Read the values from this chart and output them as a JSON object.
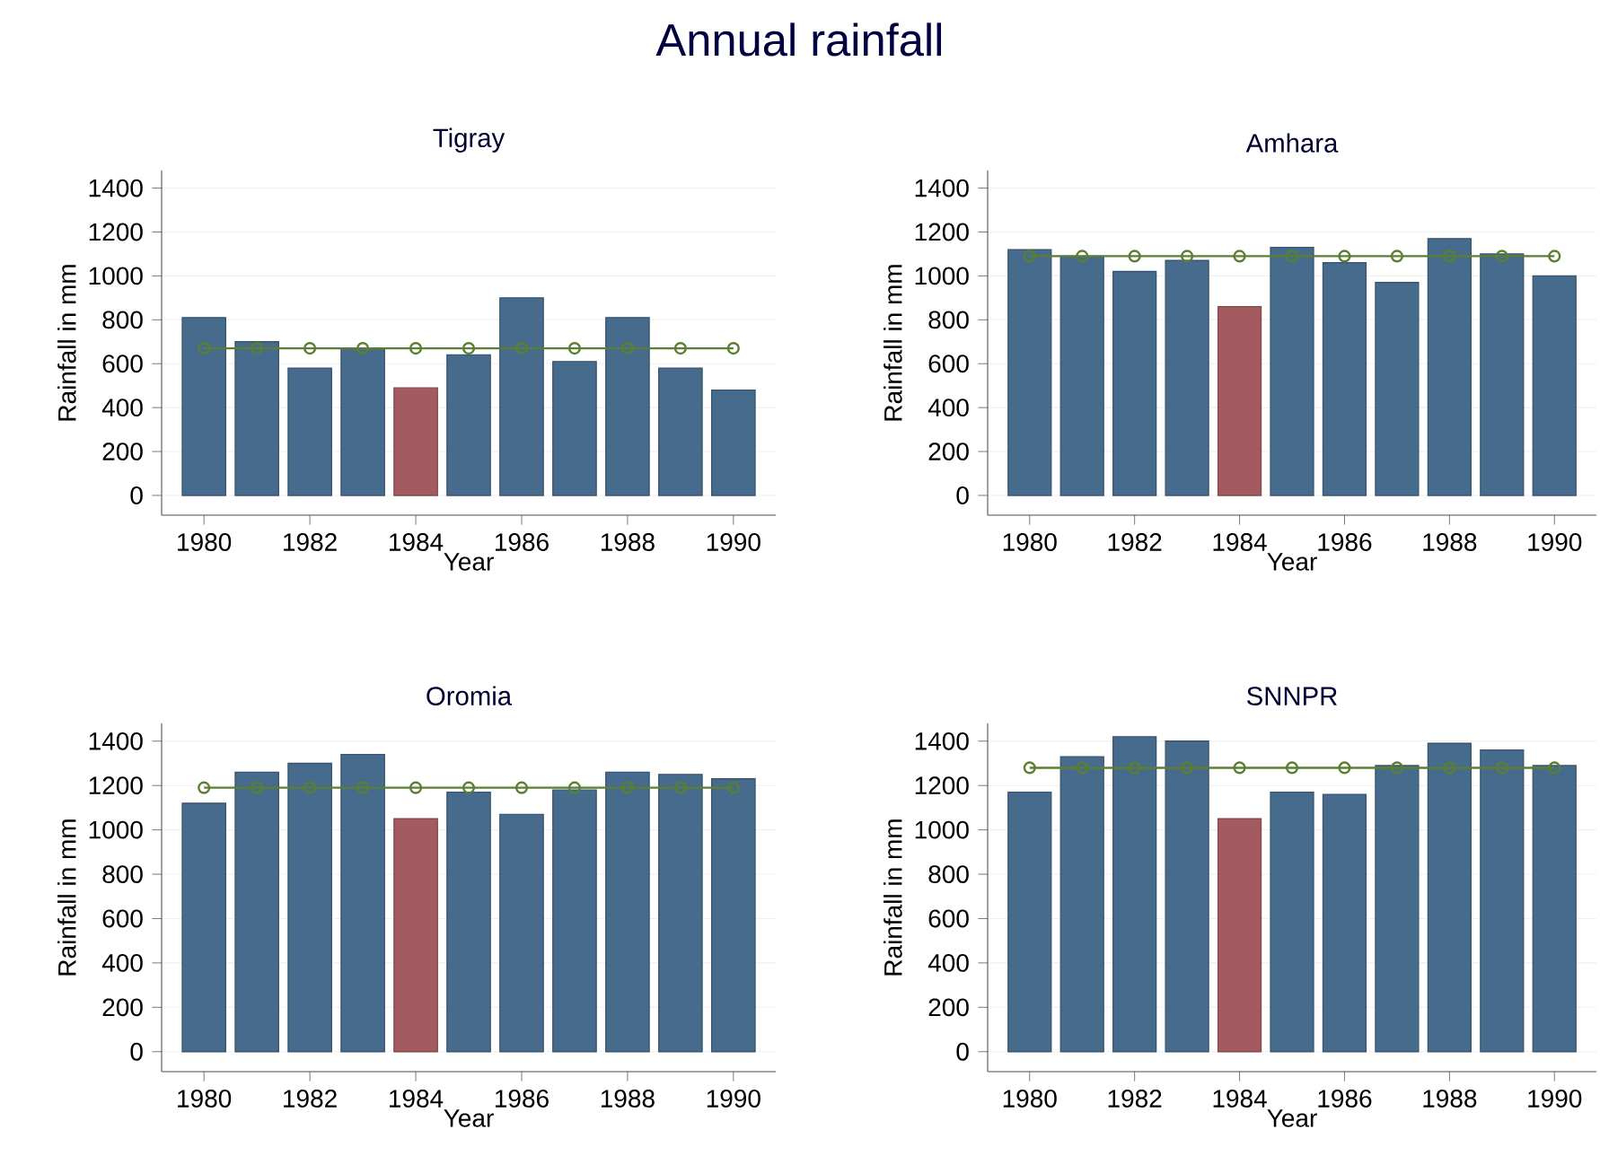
{
  "chart_data": [
    {
      "type": "bar",
      "title": "Tigray",
      "xlabel": "Year",
      "ylabel": "Rainfall in mm",
      "annotations": [
        "Annual rainfall"
      ],
      "x": [
        1980,
        1981,
        1982,
        1983,
        1984,
        1985,
        1986,
        1987,
        1988,
        1989,
        1990
      ],
      "xlim": [
        1979.2,
        1990.8
      ],
      "xticks": [
        1980,
        1982,
        1984,
        1986,
        1988,
        1990
      ],
      "ylim": [
        -90,
        1480
      ],
      "yticks": [
        0,
        200,
        400,
        600,
        800,
        1000,
        1200,
        1400
      ],
      "grid": "y",
      "series": [
        {
          "values": [
            810,
            700,
            580,
            670,
            490,
            640,
            900,
            610,
            810,
            580,
            480
          ],
          "colors": [
            "#476b8c",
            "#476b8c",
            "#476b8c",
            "#476b8c",
            "#a45b60",
            "#476b8c",
            "#476b8c",
            "#476b8c",
            "#476b8c",
            "#476b8c",
            "#476b8c"
          ]
        },
        {
          "type": "line",
          "color": "#5a7f32",
          "marker": "circle",
          "values": [
            670,
            670,
            670,
            670,
            670,
            670,
            670,
            670,
            670,
            670,
            670
          ]
        }
      ]
    },
    {
      "type": "bar",
      "title": "Amhara",
      "xlabel": "Year",
      "ylabel": "Rainfall in mm",
      "x": [
        1980,
        1981,
        1982,
        1983,
        1984,
        1985,
        1986,
        1987,
        1988,
        1989,
        1990
      ],
      "xlim": [
        1979.2,
        1990.8
      ],
      "xticks": [
        1980,
        1982,
        1984,
        1986,
        1988,
        1990
      ],
      "ylim": [
        -90,
        1480
      ],
      "yticks": [
        0,
        200,
        400,
        600,
        800,
        1000,
        1200,
        1400
      ],
      "grid": "y",
      "series": [
        {
          "values": [
            1120,
            1090,
            1020,
            1070,
            860,
            1130,
            1060,
            970,
            1170,
            1100,
            1000
          ],
          "colors": [
            "#476b8c",
            "#476b8c",
            "#476b8c",
            "#476b8c",
            "#a45b60",
            "#476b8c",
            "#476b8c",
            "#476b8c",
            "#476b8c",
            "#476b8c",
            "#476b8c"
          ]
        },
        {
          "type": "line",
          "color": "#5a7f32",
          "marker": "circle",
          "values": [
            1090,
            1090,
            1090,
            1090,
            1090,
            1090,
            1090,
            1090,
            1090,
            1090,
            1090
          ]
        }
      ]
    },
    {
      "type": "bar",
      "title": "Oromia",
      "xlabel": "Year",
      "ylabel": "Rainfall in mm",
      "x": [
        1980,
        1981,
        1982,
        1983,
        1984,
        1985,
        1986,
        1987,
        1988,
        1989,
        1990
      ],
      "xlim": [
        1979.2,
        1990.8
      ],
      "xticks": [
        1980,
        1982,
        1984,
        1986,
        1988,
        1990
      ],
      "ylim": [
        -90,
        1480
      ],
      "yticks": [
        0,
        200,
        400,
        600,
        800,
        1000,
        1200,
        1400
      ],
      "grid": "y",
      "series": [
        {
          "values": [
            1120,
            1260,
            1300,
            1340,
            1050,
            1170,
            1070,
            1180,
            1260,
            1250,
            1230
          ],
          "colors": [
            "#476b8c",
            "#476b8c",
            "#476b8c",
            "#476b8c",
            "#a45b60",
            "#476b8c",
            "#476b8c",
            "#476b8c",
            "#476b8c",
            "#476b8c",
            "#476b8c"
          ]
        },
        {
          "type": "line",
          "color": "#5a7f32",
          "marker": "circle",
          "values": [
            1190,
            1190,
            1190,
            1190,
            1190,
            1190,
            1190,
            1190,
            1190,
            1190,
            1190
          ]
        }
      ]
    },
    {
      "type": "bar",
      "title": "SNNPR",
      "xlabel": "Year",
      "ylabel": "Rainfall in mm",
      "x": [
        1980,
        1981,
        1982,
        1983,
        1984,
        1985,
        1986,
        1987,
        1988,
        1989,
        1990
      ],
      "xlim": [
        1979.2,
        1990.8
      ],
      "xticks": [
        1980,
        1982,
        1984,
        1986,
        1988,
        1990
      ],
      "ylim": [
        -90,
        1480
      ],
      "yticks": [
        0,
        200,
        400,
        600,
        800,
        1000,
        1200,
        1400
      ],
      "grid": "y",
      "series": [
        {
          "values": [
            1170,
            1330,
            1420,
            1400,
            1050,
            1170,
            1160,
            1290,
            1390,
            1360,
            1290
          ],
          "colors": [
            "#476b8c",
            "#476b8c",
            "#476b8c",
            "#476b8c",
            "#a45b60",
            "#476b8c",
            "#476b8c",
            "#476b8c",
            "#476b8c",
            "#476b8c",
            "#476b8c"
          ]
        },
        {
          "type": "line",
          "color": "#5a7f32",
          "marker": "circle",
          "values": [
            1280,
            1280,
            1280,
            1280,
            1280,
            1280,
            1280,
            1280,
            1280,
            1280,
            1280
          ]
        }
      ]
    }
  ]
}
